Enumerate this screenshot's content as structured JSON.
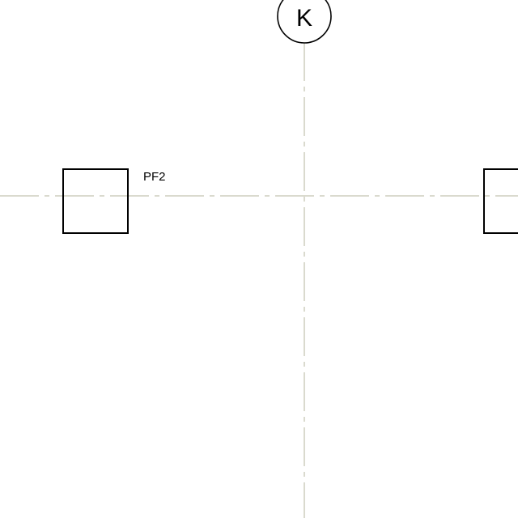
{
  "grid": {
    "vertical_axis_label": "K",
    "line_color": "#b5b59c"
  },
  "footings": [
    {
      "tag": "PF2"
    }
  ]
}
